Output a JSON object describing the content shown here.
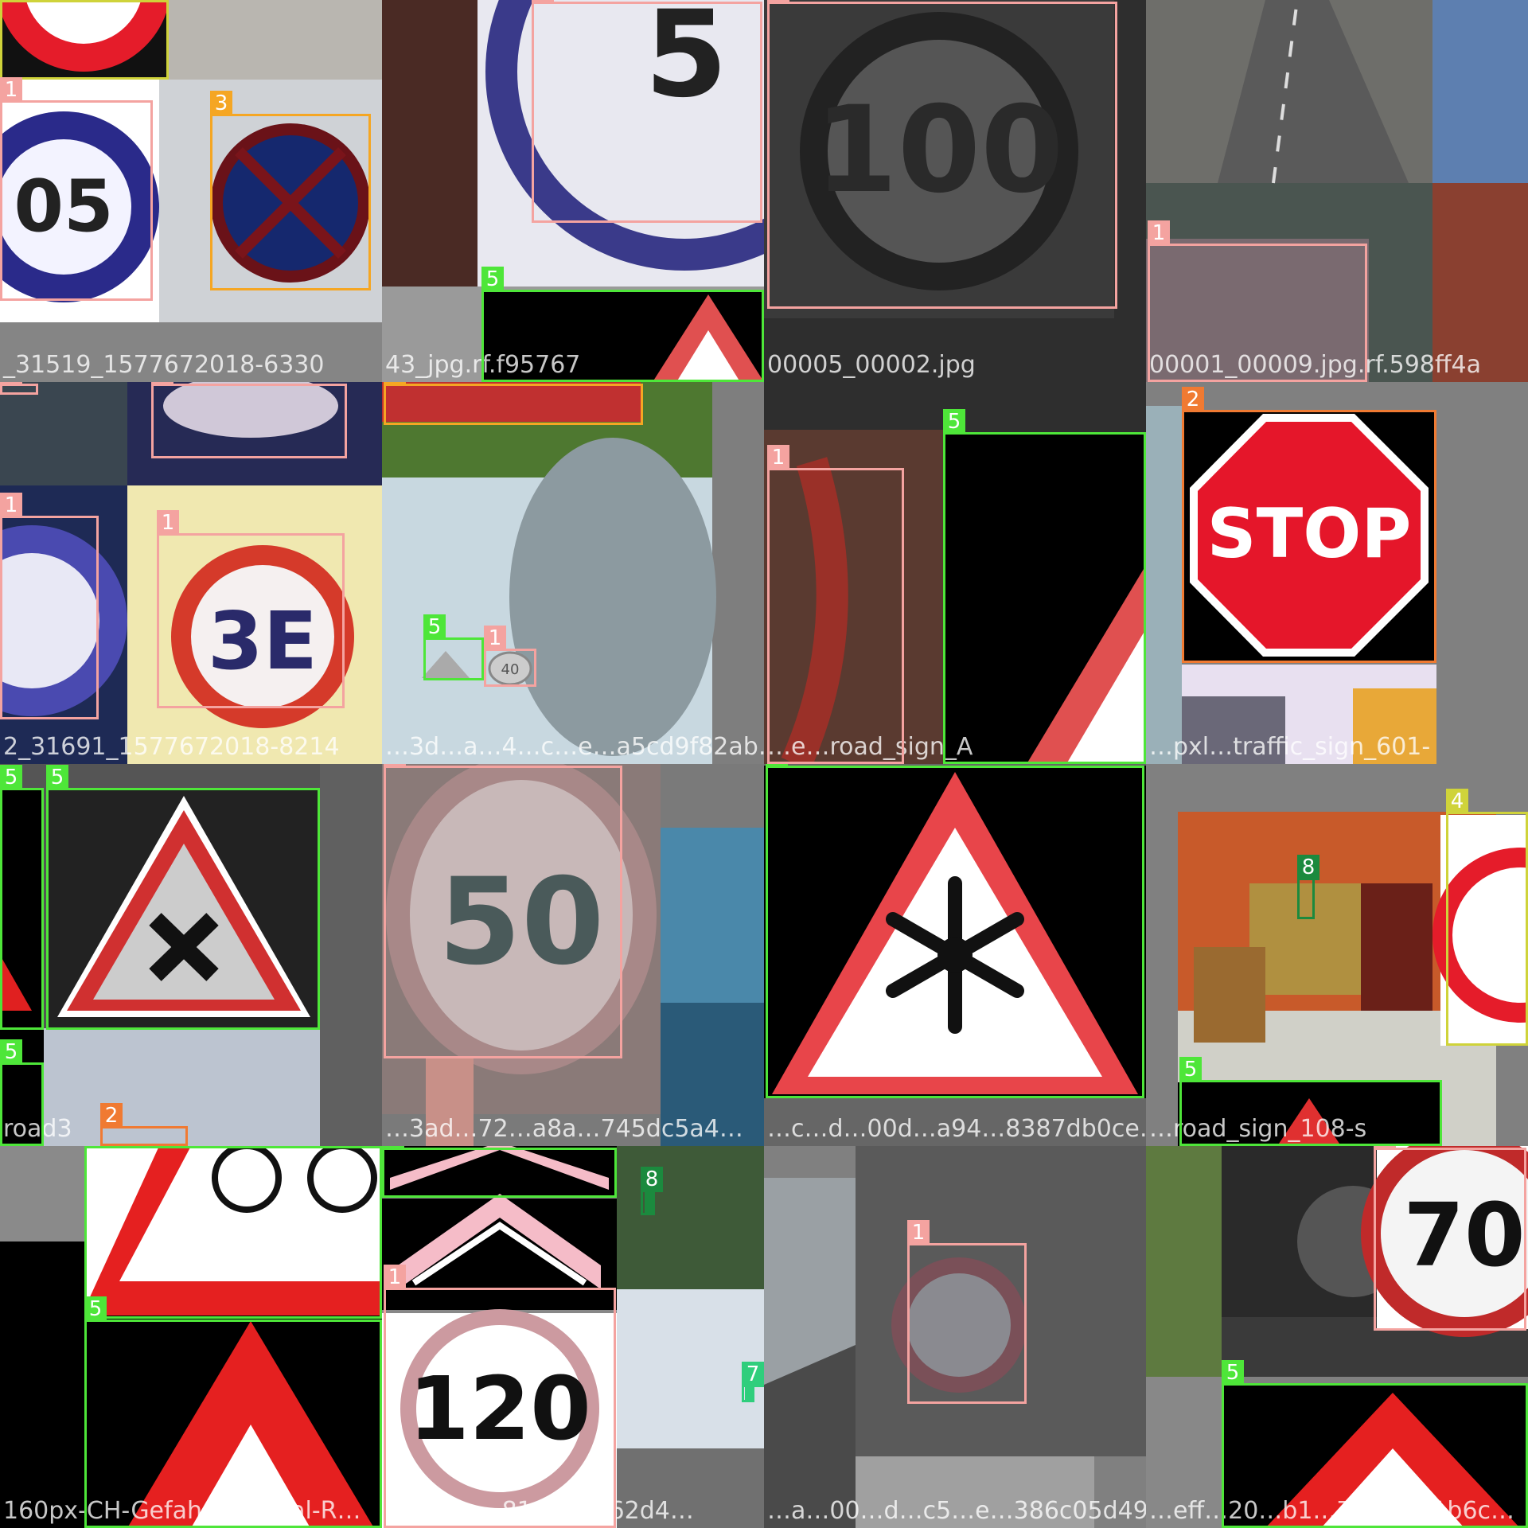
{
  "classes": {
    "1": {
      "color": "#f4a3a0"
    },
    "2": {
      "color": "#f07a32"
    },
    "3": {
      "color": "#f5a623"
    },
    "4": {
      "color": "#cfd33a"
    },
    "5": {
      "color": "#4ee639"
    },
    "7": {
      "color": "#2fce7c"
    },
    "8": {
      "color": "#1b8a3e"
    }
  },
  "tiles": [
    {
      "file": "_31519_1577672018-6330"
    },
    {
      "file": "43_jpg.rf.f95767"
    },
    {
      "file": "00005_00002.jpg"
    },
    {
      "file": "00001_00009.jpg.rf.598ff4a"
    },
    {
      "file": "2_31691_1577672018-8214"
    },
    {
      "file": "…3d…a…4…c…e…a5cd9f82ab…"
    },
    {
      "file": "…e…road_sign_A"
    },
    {
      "file": "…pxl…traffic_sign_601-"
    },
    {
      "file": "road3"
    },
    {
      "file": "…3ad…72…a8a…745dc5a4…"
    },
    {
      "file": "…c…d…00d…a94…8387db0ce…"
    },
    {
      "file": "…road_sign_108-s"
    },
    {
      "file": "160px-CH-Gefahrensignal-R…"
    },
    {
      "file": "…d1…e…816fa4f762d4…"
    },
    {
      "file": "…a…00…d…c5…e…386c05d49…"
    },
    {
      "file": "…eff…20…b1…7…f…rf.1b6c…"
    }
  ],
  "detections": [
    {
      "tile": 0,
      "label": "4"
    },
    {
      "tile": 0,
      "label": "1"
    },
    {
      "tile": 0,
      "label": "3"
    },
    {
      "tile": 1,
      "label": "1"
    },
    {
      "tile": 1,
      "label": "5"
    },
    {
      "tile": 2,
      "label": "1"
    },
    {
      "tile": 3,
      "label": "1"
    },
    {
      "tile": 4,
      "label": "1"
    },
    {
      "tile": 4,
      "label": "1"
    },
    {
      "tile": 4,
      "label": "1"
    },
    {
      "tile": 4,
      "label": "1"
    },
    {
      "tile": 5,
      "label": "3"
    },
    {
      "tile": 5,
      "label": "5"
    },
    {
      "tile": 5,
      "label": "1"
    },
    {
      "tile": 6,
      "label": "1"
    },
    {
      "tile": 6,
      "label": "5"
    },
    {
      "tile": 7,
      "label": "2"
    },
    {
      "tile": 8,
      "label": "5"
    },
    {
      "tile": 8,
      "label": "5"
    },
    {
      "tile": 8,
      "label": "5"
    },
    {
      "tile": 8,
      "label": "2"
    },
    {
      "tile": 9,
      "label": "1"
    },
    {
      "tile": 10,
      "label": "5"
    },
    {
      "tile": 11,
      "label": "4"
    },
    {
      "tile": 11,
      "label": "8"
    },
    {
      "tile": 11,
      "label": "5"
    },
    {
      "tile": 12,
      "label": "5"
    },
    {
      "tile": 12,
      "label": "5"
    },
    {
      "tile": 13,
      "label": "5"
    },
    {
      "tile": 13,
      "label": "1"
    },
    {
      "tile": 13,
      "label": "8"
    },
    {
      "tile": 13,
      "label": "7"
    },
    {
      "tile": 14,
      "label": "1"
    },
    {
      "tile": 15,
      "label": "1"
    },
    {
      "tile": 15,
      "label": "5"
    }
  ]
}
